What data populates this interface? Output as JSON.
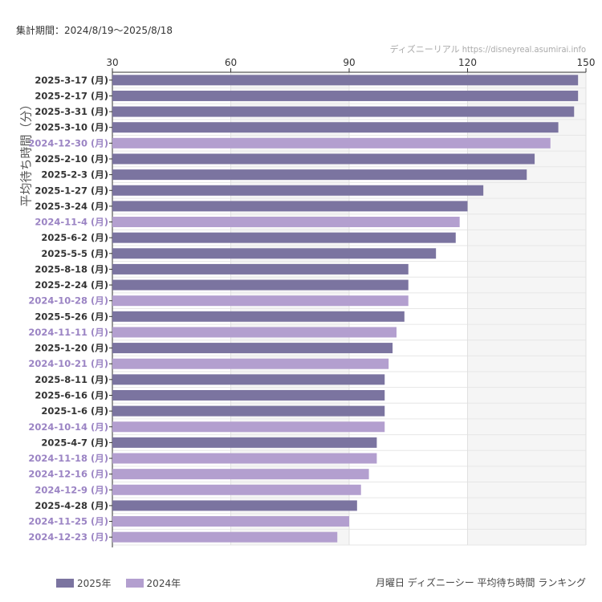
{
  "header": {
    "period": "集計期間：2024/8/19〜2025/8/18",
    "credit": "ディズニーリアル https://disneyreal.asumirai.info"
  },
  "footer": {
    "title": "月曜日 ディズニーシー 平均待ち時間 ランキング"
  },
  "colors": {
    "y2025": "#7b74a0",
    "y2024": "#b39fcf",
    "label2025": "#333333",
    "label2024": "#9b84c4"
  },
  "chart_data": {
    "type": "bar",
    "orientation": "horizontal",
    "ylabel": "平均待ち時間（分）",
    "xlim": [
      30,
      150
    ],
    "xticks": [
      30,
      60,
      90,
      120,
      150
    ],
    "grid": true,
    "legend_position": "bottom-left",
    "series_names": {
      "y2025": "2025年",
      "y2024": "2024年"
    },
    "categories": [
      "2025-3-17 (月)",
      "2025-2-17 (月)",
      "2025-3-31 (月)",
      "2025-3-10 (月)",
      "2024-12-30 (月)",
      "2025-2-10 (月)",
      "2025-2-3 (月)",
      "2025-1-27 (月)",
      "2025-3-24 (月)",
      "2024-11-4 (月)",
      "2025-6-2 (月)",
      "2025-5-5 (月)",
      "2025-8-18 (月)",
      "2025-2-24 (月)",
      "2024-10-28 (月)",
      "2025-5-26 (月)",
      "2024-11-11 (月)",
      "2025-1-20 (月)",
      "2024-10-21 (月)",
      "2025-8-11 (月)",
      "2025-6-16 (月)",
      "2025-1-6 (月)",
      "2024-10-14 (月)",
      "2025-4-7 (月)",
      "2024-11-18 (月)",
      "2024-12-16 (月)",
      "2024-12-9 (月)",
      "2025-4-28 (月)",
      "2024-11-25 (月)",
      "2024-12-23 (月)"
    ],
    "values": [
      148,
      148,
      147,
      143,
      141,
      137,
      135,
      124,
      120,
      118,
      117,
      112,
      105,
      105,
      105,
      104,
      102,
      101,
      100,
      99,
      99,
      99,
      99,
      97,
      97,
      95,
      93,
      92,
      90,
      87
    ],
    "years": [
      "2025",
      "2025",
      "2025",
      "2025",
      "2024",
      "2025",
      "2025",
      "2025",
      "2025",
      "2024",
      "2025",
      "2025",
      "2025",
      "2025",
      "2024",
      "2025",
      "2024",
      "2025",
      "2024",
      "2025",
      "2025",
      "2025",
      "2024",
      "2025",
      "2024",
      "2024",
      "2024",
      "2025",
      "2024",
      "2024"
    ]
  }
}
